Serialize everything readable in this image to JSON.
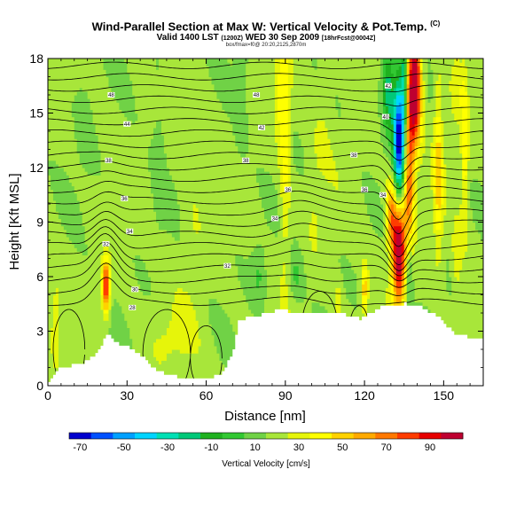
{
  "title": {
    "main": "Wind-Parallel Section at Max W: Vertical Velocity & Pot.Temp.",
    "copyright": "(C)",
    "valid_prefix": "Valid 1400 LST",
    "valid_paren": "(1200Z)",
    "valid_date": "WED 30 Sep 2009",
    "valid_suffix": "[18hrFcst@0004Z]",
    "subline": "box/fmax=f0@ 20:20,2125,2870m"
  },
  "chart_data": {
    "type": "heatmap",
    "xlabel": "Distance [nm]",
    "ylabel": "Height [Kft MSL]",
    "xlim": [
      0,
      165
    ],
    "ylim": [
      0,
      18
    ],
    "xticks": [
      0,
      30,
      60,
      90,
      120,
      150
    ],
    "yticks": [
      0,
      3,
      6,
      9,
      12,
      15,
      18
    ],
    "colorbar": {
      "label": "Vertical Velocity [cm/s]",
      "ticks": [
        "-70",
        "-50",
        "-30",
        "-10",
        "10",
        "30",
        "50",
        "70",
        "90"
      ],
      "colors": [
        "#0000cd",
        "#0050ff",
        "#00a0ff",
        "#00d4ff",
        "#00e0b4",
        "#00c878",
        "#1fb11f",
        "#32c832",
        "#70d246",
        "#a8e63a",
        "#e6f50a",
        "#ffff00",
        "#ffd200",
        "#ffaa00",
        "#ff7800",
        "#ff3c00",
        "#e60000",
        "#be0030"
      ]
    },
    "terrain": [
      [
        0,
        0.3
      ],
      [
        2,
        0.5
      ],
      [
        4,
        1.0
      ],
      [
        8,
        1.0
      ],
      [
        10,
        1.2
      ],
      [
        14,
        1.3
      ],
      [
        18,
        1.7
      ],
      [
        20,
        2.2
      ],
      [
        22,
        2.9
      ],
      [
        24,
        2.6
      ],
      [
        27,
        2.2
      ],
      [
        30,
        2.1
      ],
      [
        33,
        1.8
      ],
      [
        36,
        1.5
      ],
      [
        38,
        1.2
      ],
      [
        40,
        0.9
      ],
      [
        44,
        0.7
      ],
      [
        48,
        0.5
      ],
      [
        52,
        0.4
      ],
      [
        57,
        0.4
      ],
      [
        63,
        0.5
      ],
      [
        66,
        0.8
      ],
      [
        68,
        1.3
      ],
      [
        70,
        2.0
      ],
      [
        72,
        3.5
      ],
      [
        75,
        3.8
      ],
      [
        80,
        3.8
      ],
      [
        82,
        4.0
      ],
      [
        85,
        4.1
      ],
      [
        90,
        4.2
      ],
      [
        92,
        3.9
      ],
      [
        95,
        4.1
      ],
      [
        100,
        4.0
      ],
      [
        104,
        4.1
      ],
      [
        108,
        4.0
      ],
      [
        112,
        3.9
      ],
      [
        116,
        3.8
      ],
      [
        118,
        3.6
      ],
      [
        120,
        3.8
      ],
      [
        124,
        4.2
      ],
      [
        128,
        4.4
      ],
      [
        135,
        4.5
      ],
      [
        139,
        4.4
      ],
      [
        142,
        4.3
      ],
      [
        145,
        4.0
      ],
      [
        148,
        3.7
      ],
      [
        151,
        3.3
      ],
      [
        154,
        2.9
      ],
      [
        158,
        2.7
      ],
      [
        165,
        2.6
      ]
    ],
    "w_features": [
      {
        "x": 133,
        "z": 7.5,
        "sx": 1.7,
        "sz": 2.0,
        "w": 100
      },
      {
        "x": 139,
        "z": 16.5,
        "sx": 1.7,
        "sz": 2.2,
        "w": 100
      },
      {
        "x": 137,
        "z": 11.0,
        "sx": 1.3,
        "sz": 3.0,
        "w": 55
      },
      {
        "x": 130,
        "z": 9.5,
        "sx": 1.4,
        "sz": 1.3,
        "w": 45
      },
      {
        "x": 129,
        "z": 16.5,
        "sx": 1.6,
        "sz": 1.8,
        "w": -40
      },
      {
        "x": 133,
        "z": 13.5,
        "sx": 1.4,
        "sz": 2.5,
        "w": -90
      },
      {
        "x": 135,
        "z": 16.5,
        "sx": 0.8,
        "sz": 2.0,
        "w": -40
      },
      {
        "x": 137,
        "z": 6.5,
        "sx": 1.0,
        "sz": 1.6,
        "w": -30
      },
      {
        "x": 22,
        "z": 5.5,
        "sx": 1.0,
        "sz": 1.0,
        "w": 75
      },
      {
        "x": 120,
        "z": 5.3,
        "sx": 0.9,
        "sz": 0.9,
        "w": 35
      },
      {
        "x": 110,
        "z": 4.8,
        "sx": 1.0,
        "sz": 0.6,
        "w": 18
      },
      {
        "x": 155,
        "z": 7.0,
        "sx": 1.2,
        "sz": 1.2,
        "w": 18
      },
      {
        "x": 148,
        "z": 12.0,
        "sx": 1.2,
        "sz": 3.5,
        "w": 30
      },
      {
        "x": 158,
        "z": 13.0,
        "sx": 1.0,
        "sz": 3.0,
        "w": 25
      },
      {
        "x": 90,
        "z": 13.0,
        "sx": 1.3,
        "sz": 4.5,
        "w": 22
      },
      {
        "x": 88,
        "z": 15.5,
        "sx": 1.4,
        "sz": 2.0,
        "w": 18
      },
      {
        "x": 3,
        "z": 3.5,
        "sx": 1.2,
        "sz": 1.5,
        "w": 15
      },
      {
        "x": 155,
        "z": 16.5,
        "sx": 2.0,
        "sz": 1.5,
        "w": 15
      },
      {
        "x": 80,
        "z": 6.2,
        "sx": 2.0,
        "sz": 1.2,
        "w": -14
      },
      {
        "x": 94,
        "z": 6.0,
        "sx": 1.8,
        "sz": 1.0,
        "w": -14
      },
      {
        "x": 42,
        "z": 12.5,
        "sx": 1.8,
        "sz": 3.0,
        "w": -8
      },
      {
        "x": 73,
        "z": 15.5,
        "sx": 1.8,
        "sz": 2.5,
        "w": -8
      },
      {
        "x": 14,
        "z": 16.0,
        "sx": 3.0,
        "sz": 2.5,
        "w": -6
      },
      {
        "x": 105,
        "z": 15.0,
        "sx": 2.5,
        "sz": 2.5,
        "w": 6
      },
      {
        "x": 47,
        "z": 2.5,
        "sx": 7.0,
        "sz": 1.2,
        "w": 8
      },
      {
        "x": 55,
        "z": 8.5,
        "sx": 3.0,
        "sz": 3.0,
        "w": 7
      },
      {
        "x": 101,
        "z": 10.0,
        "sx": 2.0,
        "sz": 2.5,
        "w": 7
      }
    ],
    "theta_labels": [
      {
        "x": 24,
        "z": 16.0,
        "text": "48"
      },
      {
        "x": 79,
        "z": 16.0,
        "text": "48"
      },
      {
        "x": 30,
        "z": 14.4,
        "text": "44"
      },
      {
        "x": 81,
        "z": 14.2,
        "text": "42"
      },
      {
        "x": 23,
        "z": 12.4,
        "text": "38"
      },
      {
        "x": 75,
        "z": 12.4,
        "text": "38"
      },
      {
        "x": 29,
        "z": 10.3,
        "text": "36"
      },
      {
        "x": 91,
        "z": 10.8,
        "text": "36"
      },
      {
        "x": 31,
        "z": 8.5,
        "text": "34"
      },
      {
        "x": 86,
        "z": 9.2,
        "text": "34"
      },
      {
        "x": 22,
        "z": 7.8,
        "text": "32"
      },
      {
        "x": 68,
        "z": 6.6,
        "text": "32"
      },
      {
        "x": 33,
        "z": 5.3,
        "text": "30"
      },
      {
        "x": 32,
        "z": 4.3,
        "text": "28"
      },
      {
        "x": 129,
        "z": 16.5,
        "text": "42"
      },
      {
        "x": 128,
        "z": 14.8,
        "text": "40"
      },
      {
        "x": 116,
        "z": 12.7,
        "text": "38"
      },
      {
        "x": 120,
        "z": 10.8,
        "text": "36"
      },
      {
        "x": 127,
        "z": 10.5,
        "text": "34"
      }
    ]
  }
}
